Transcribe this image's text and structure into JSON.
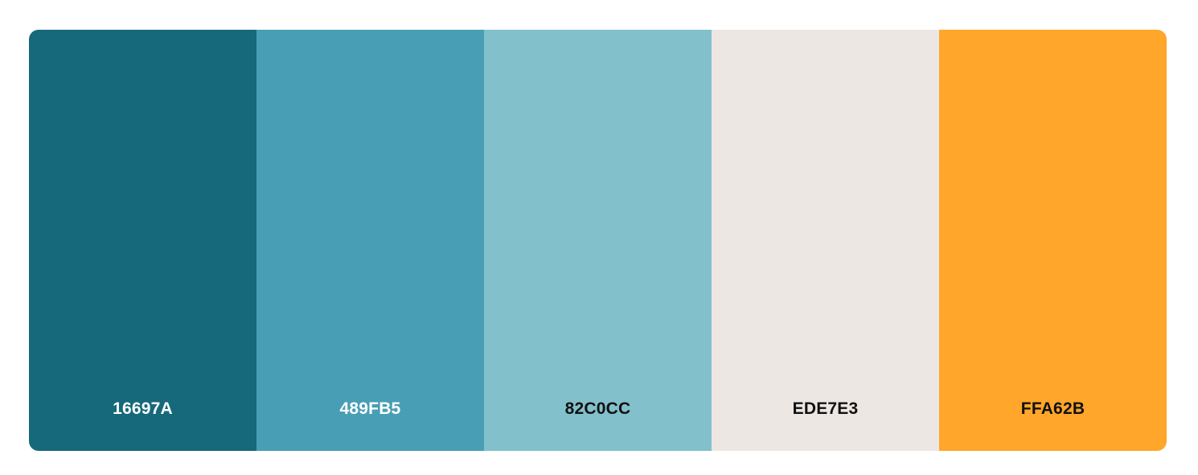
{
  "palette": {
    "swatches": [
      {
        "label": "16697A",
        "color": "#16697A",
        "text_color": "#FFFFFF"
      },
      {
        "label": "489FB5",
        "color": "#489FB5",
        "text_color": "#FFFFFF"
      },
      {
        "label": "82C0CC",
        "color": "#82C0CC",
        "text_color": "#111111"
      },
      {
        "label": "EDE7E3",
        "color": "#EDE7E3",
        "text_color": "#111111"
      },
      {
        "label": "FFA62B",
        "color": "#FFA62B",
        "text_color": "#111111"
      }
    ]
  }
}
